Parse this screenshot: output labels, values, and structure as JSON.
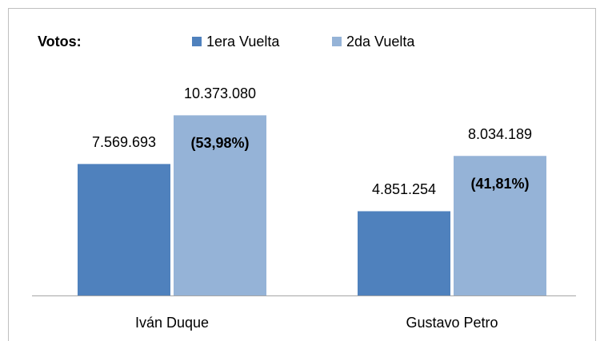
{
  "chart_data": {
    "type": "bar",
    "title": "Votos:",
    "categories": [
      "Iván Duque",
      "Gustavo Petro"
    ],
    "series": [
      {
        "name": "1era Vuelta",
        "color": "#4f81bd",
        "values": [
          7569693,
          4851254
        ],
        "value_labels": [
          "7.569.693",
          "4.851.254"
        ]
      },
      {
        "name": "2da Vuelta",
        "color": "#95b3d7",
        "values": [
          10373080,
          8034189
        ],
        "value_labels": [
          "10.373.080",
          "8.034.189"
        ],
        "annotations": [
          "(53,98%)",
          "(41,81%)"
        ]
      }
    ],
    "ylim": [
      0,
      12000000
    ]
  }
}
